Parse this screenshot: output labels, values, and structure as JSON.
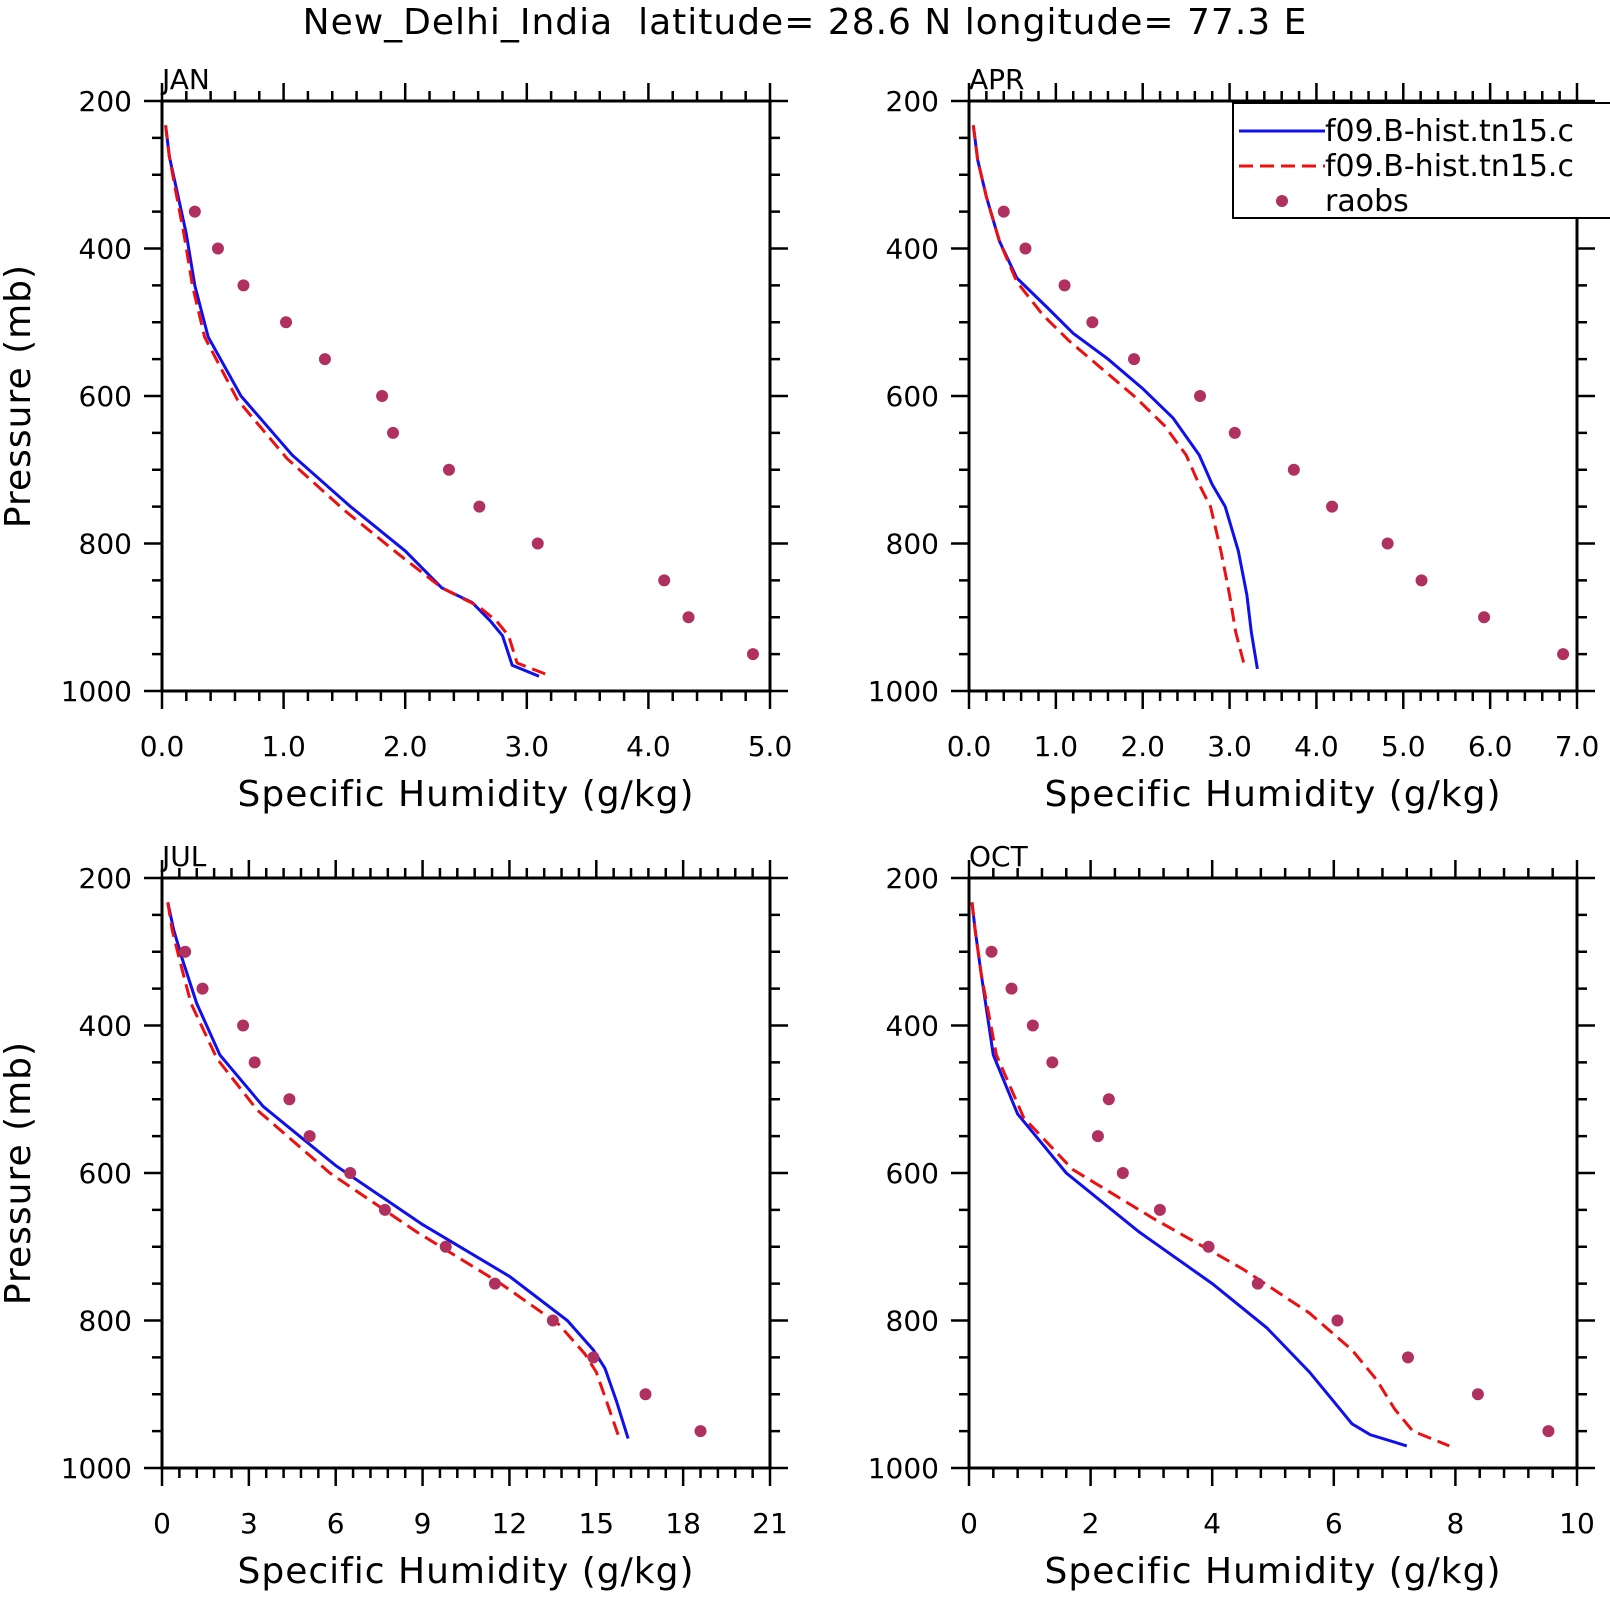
{
  "title": "New_Delhi_India  latitude= 28.6 N longitude= 77.3 E",
  "legend": {
    "entries": [
      {
        "label": "f09.B-hist.tn15.c",
        "color": "#1010ee",
        "style": "solid"
      },
      {
        "label": "f09.B-hist.tn15.c",
        "color": "#ee1010",
        "style": "dashed"
      },
      {
        "label": "raobs",
        "color": "#b03060",
        "style": "dot"
      }
    ]
  },
  "colors": {
    "model_solid": "#1010ee",
    "model_dashed": "#ee1010",
    "raobs": "#b03060"
  },
  "chart_data": [
    {
      "type": "line",
      "panel": "JAN",
      "title": "JAN",
      "xlabel": "Specific Humidity (g/kg)",
      "ylabel": "Pressure (mb)",
      "xlim": [
        0,
        5
      ],
      "ylim": [
        1000,
        200
      ],
      "x_ticks": [
        "0.0",
        "1.0",
        "2.0",
        "3.0",
        "4.0",
        "5.0"
      ],
      "y_ticks": [
        "200",
        "400",
        "600",
        "800",
        "1000"
      ],
      "series": [
        {
          "name": "f09.B-hist.tn15.c",
          "style": "solid",
          "x": [
            0.03,
            0.06,
            0.12,
            0.2,
            0.27,
            0.38,
            0.65,
            1.07,
            1.55,
            2.0,
            2.3,
            2.55,
            2.7,
            2.8,
            2.88,
            3.1
          ],
          "y": [
            233,
            275,
            320,
            380,
            450,
            520,
            600,
            680,
            750,
            810,
            860,
            880,
            905,
            925,
            965,
            980
          ]
        },
        {
          "name": "f09.B-hist.tn15.c",
          "style": "dashed",
          "x": [
            0.03,
            0.06,
            0.11,
            0.18,
            0.25,
            0.35,
            0.62,
            1.03,
            1.5,
            1.95,
            2.3,
            2.6,
            2.75,
            2.85,
            2.92,
            3.17
          ],
          "y": [
            233,
            275,
            320,
            380,
            450,
            520,
            605,
            685,
            755,
            815,
            860,
            885,
            905,
            925,
            962,
            978
          ]
        },
        {
          "name": "raobs",
          "style": "markers",
          "x": [
            0.27,
            0.46,
            0.67,
            1.02,
            1.34,
            1.81,
            1.9,
            2.36,
            2.61,
            3.09,
            4.13,
            4.33,
            4.86
          ],
          "y": [
            350,
            400,
            450,
            500,
            550,
            600,
            650,
            700,
            750,
            800,
            850,
            900,
            950
          ]
        }
      ]
    },
    {
      "type": "line",
      "panel": "APR",
      "title": "APR",
      "xlabel": "Specific Humidity (g/kg)",
      "ylabel": "",
      "xlim": [
        0,
        7
      ],
      "ylim": [
        1000,
        200
      ],
      "x_ticks": [
        "0.0",
        "1.0",
        "2.0",
        "3.0",
        "4.0",
        "5.0",
        "6.0",
        "7.0"
      ],
      "y_ticks": [
        "200",
        "400",
        "600",
        "800",
        "1000"
      ],
      "series": [
        {
          "name": "f09.B-hist.tn15.c",
          "style": "solid",
          "x": [
            0.05,
            0.1,
            0.2,
            0.35,
            0.55,
            0.9,
            1.2,
            1.6,
            2.0,
            2.35,
            2.65,
            2.8,
            2.95,
            3.1,
            3.2,
            3.25,
            3.32
          ],
          "y": [
            233,
            280,
            330,
            390,
            440,
            480,
            515,
            550,
            590,
            630,
            680,
            720,
            750,
            810,
            870,
            920,
            970
          ]
        },
        {
          "name": "f09.B-hist.tn15.c",
          "style": "dashed",
          "x": [
            0.05,
            0.1,
            0.2,
            0.35,
            0.55,
            0.85,
            1.15,
            1.5,
            1.9,
            2.25,
            2.5,
            2.65,
            2.78,
            2.9,
            3.0,
            3.07,
            3.17
          ],
          "y": [
            233,
            280,
            330,
            390,
            445,
            490,
            525,
            560,
            600,
            640,
            680,
            720,
            750,
            810,
            870,
            920,
            965
          ]
        },
        {
          "name": "raobs",
          "style": "markers",
          "x": [
            0.4,
            0.65,
            1.1,
            1.42,
            1.9,
            2.66,
            3.06,
            3.74,
            4.18,
            4.82,
            5.21,
            5.93,
            6.84
          ],
          "y": [
            350,
            400,
            450,
            500,
            550,
            600,
            650,
            700,
            750,
            800,
            850,
            900,
            950
          ]
        }
      ]
    },
    {
      "type": "line",
      "panel": "JUL",
      "title": "JUL",
      "xlabel": "Specific Humidity (g/kg)",
      "ylabel": "Pressure (mb)",
      "xlim": [
        0,
        21
      ],
      "ylim": [
        1000,
        200
      ],
      "x_ticks": [
        "0",
        "3",
        "6",
        "9",
        "12",
        "15",
        "18",
        "21"
      ],
      "y_ticks": [
        "200",
        "400",
        "600",
        "800",
        "1000"
      ],
      "series": [
        {
          "name": "f09.B-hist.tn15.c",
          "style": "solid",
          "x": [
            0.2,
            0.4,
            0.7,
            1.2,
            2.0,
            3.5,
            6.0,
            9.0,
            12.0,
            14.0,
            14.9,
            15.3,
            15.7,
            16.1
          ],
          "y": [
            233,
            270,
            310,
            370,
            440,
            510,
            590,
            670,
            740,
            800,
            840,
            865,
            910,
            960
          ]
        },
        {
          "name": "f09.B-hist.tn15.c",
          "style": "dashed",
          "x": [
            0.2,
            0.35,
            0.6,
            1.0,
            1.9,
            3.3,
            5.8,
            8.8,
            11.7,
            13.7,
            14.6,
            15.0,
            15.4,
            15.8
          ],
          "y": [
            233,
            270,
            310,
            370,
            445,
            515,
            600,
            680,
            750,
            805,
            845,
            870,
            915,
            960
          ]
        },
        {
          "name": "raobs",
          "style": "markers",
          "x": [
            0.8,
            1.4,
            2.8,
            3.2,
            4.4,
            5.1,
            6.5,
            7.7,
            9.8,
            11.5,
            13.5,
            14.9,
            16.7,
            18.6
          ],
          "y": [
            300,
            350,
            400,
            450,
            500,
            550,
            600,
            650,
            700,
            750,
            800,
            850,
            900,
            950
          ]
        }
      ]
    },
    {
      "type": "line",
      "panel": "OCT",
      "title": "OCT",
      "xlabel": "Specific Humidity (g/kg)",
      "ylabel": "",
      "xlim": [
        0,
        10
      ],
      "ylim": [
        1000,
        200
      ],
      "x_ticks": [
        "0",
        "2",
        "4",
        "6",
        "8",
        "10"
      ],
      "y_ticks": [
        "200",
        "400",
        "600",
        "800",
        "1000"
      ],
      "series": [
        {
          "name": "f09.B-hist.tn15.c",
          "style": "solid",
          "x": [
            0.05,
            0.1,
            0.2,
            0.4,
            0.8,
            1.6,
            2.8,
            4.0,
            4.9,
            5.6,
            6.0,
            6.3,
            6.6,
            7.2
          ],
          "y": [
            233,
            270,
            330,
            440,
            520,
            600,
            680,
            750,
            810,
            870,
            910,
            940,
            955,
            970
          ]
        },
        {
          "name": "f09.B-hist.tn15.c",
          "style": "dashed",
          "x": [
            0.05,
            0.1,
            0.2,
            0.45,
            0.9,
            1.7,
            3.0,
            4.5,
            5.6,
            6.3,
            6.7,
            7.0,
            7.3,
            7.9
          ],
          "y": [
            233,
            270,
            330,
            440,
            525,
            595,
            660,
            730,
            790,
            840,
            880,
            920,
            950,
            970
          ]
        },
        {
          "name": "raobs",
          "style": "markers",
          "x": [
            0.37,
            0.7,
            1.05,
            1.37,
            2.3,
            2.12,
            2.53,
            3.14,
            3.94,
            4.75,
            6.06,
            7.22,
            8.37,
            9.53
          ],
          "y": [
            300,
            350,
            400,
            450,
            500,
            550,
            600,
            650,
            700,
            750,
            800,
            850,
            900,
            950
          ]
        }
      ]
    }
  ]
}
